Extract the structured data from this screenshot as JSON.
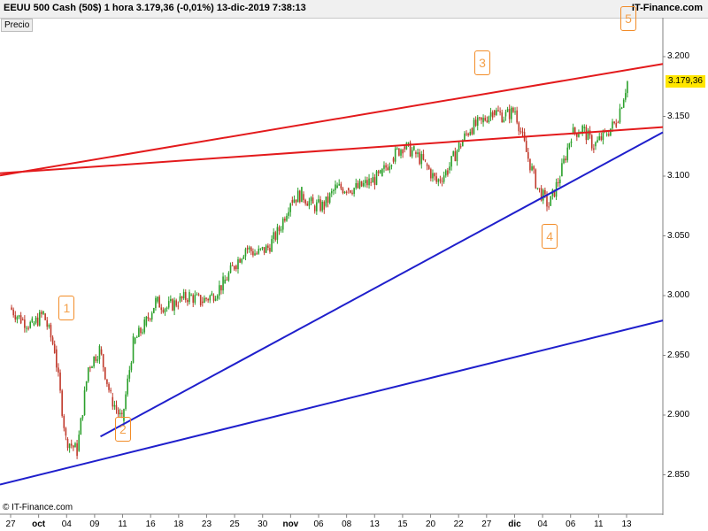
{
  "header": {
    "title": "EEUU 500 Cash (50$)    1 hora    3.179,36 (-0,01%)    13-dic-2019 7:38:13",
    "brand": "IT-Finance.com"
  },
  "precio_label": "Precio",
  "copyright": "© IT-Finance.com",
  "last_price_label": "3.179,36",
  "colors": {
    "background": "#ffffff",
    "candle_up": "#2ca02c",
    "candle_down": "#c0392b",
    "resistance_line": "#e31a1c",
    "support_line": "#1f1fcc",
    "wave_label": "#f28c28",
    "last_price_box": "#ffe600"
  },
  "chart_data": {
    "type": "line",
    "title": "EEUU 500 Cash (50$)",
    "interval": "1 hora",
    "ylabel": "Precio",
    "ylim": [
      2.83,
      3.24
    ],
    "yticks": [
      "3.200",
      "3.150",
      "3.100",
      "3.050",
      "3.000",
      "2.950",
      "2.900",
      "2.850"
    ],
    "ytick_values": [
      3.2,
      3.15,
      3.1,
      3.05,
      3.0,
      2.95,
      2.9,
      2.85
    ],
    "xticks": [
      "27",
      "oct",
      "04",
      "09",
      "11",
      "16",
      "18",
      "23",
      "25",
      "30",
      "nov",
      "06",
      "08",
      "13",
      "15",
      "20",
      "22",
      "27",
      "dic",
      "04",
      "06",
      "11",
      "13"
    ],
    "month_ticks": [
      "oct",
      "nov",
      "dic"
    ],
    "grid": false,
    "series": [
      {
        "name": "",
        "x": [
          "27-sep",
          "30-sep",
          "01-oct",
          "02-oct",
          "03-oct",
          "04-oct",
          "07-oct",
          "08-oct",
          "09-oct",
          "10-oct",
          "11-oct",
          "14-oct",
          "15-oct",
          "16-oct",
          "17-oct",
          "18-oct",
          "21-oct",
          "22-oct",
          "23-oct",
          "24-oct",
          "25-oct",
          "28-oct",
          "29-oct",
          "30-oct",
          "31-oct",
          "01-nov",
          "04-nov",
          "05-nov",
          "06-nov",
          "07-nov",
          "08-nov",
          "11-nov",
          "12-nov",
          "13-nov",
          "14-nov",
          "15-nov",
          "18-nov",
          "19-nov",
          "20-nov",
          "21-nov",
          "22-nov",
          "25-nov",
          "26-nov",
          "27-nov",
          "28-nov",
          "29-nov",
          "02-dic",
          "03-dic",
          "04-dic",
          "05-dic",
          "06-dic",
          "09-dic",
          "10-dic",
          "11-dic",
          "12-dic",
          "13-dic"
        ],
        "y": [
          2.99,
          2.98,
          2.975,
          2.985,
          2.955,
          2.88,
          2.87,
          2.94,
          2.955,
          2.915,
          2.895,
          2.96,
          2.975,
          2.995,
          2.99,
          2.995,
          3.0,
          2.995,
          3.0,
          3.01,
          3.025,
          3.04,
          3.035,
          3.04,
          3.055,
          3.08,
          3.085,
          3.075,
          3.075,
          3.09,
          3.09,
          3.09,
          3.095,
          3.1,
          3.115,
          3.125,
          3.12,
          3.11,
          3.095,
          3.105,
          3.125,
          3.14,
          3.145,
          3.155,
          3.15,
          3.155,
          3.12,
          3.09,
          3.075,
          3.1,
          3.135,
          3.14,
          3.125,
          3.135,
          3.145,
          3.179
        ]
      }
    ],
    "trendlines": [
      {
        "name": "",
        "color": "resistance_line",
        "from": {
          "x": "27-sep",
          "y": 3.102
        },
        "to": {
          "x": "13-dic",
          "y": 3.189
        }
      },
      {
        "name": "",
        "color": "resistance_line",
        "from": {
          "x": "27-sep",
          "y": 3.103
        },
        "to": {
          "x": "13-dic",
          "y": 3.139
        }
      },
      {
        "name": "",
        "color": "support_line",
        "from": {
          "x": "09-oct",
          "y": 2.882
        },
        "to": {
          "x": "13-dic",
          "y": 3.121
        }
      },
      {
        "name": "",
        "color": "support_line",
        "from": {
          "x": "27-sep",
          "y": 2.844
        },
        "to": {
          "x": "13-dic",
          "y": 2.972
        }
      }
    ],
    "annotations": [
      {
        "text": "1",
        "x": "04-oct",
        "y": 2.99
      },
      {
        "text": "2",
        "x": "11-oct",
        "y": 2.888
      },
      {
        "text": "3",
        "x": "26-nov",
        "y": 3.195
      },
      {
        "text": "4",
        "x": "04-dic",
        "y": 3.05
      },
      {
        "text": "5",
        "x": "13-dic",
        "y": 3.232
      }
    ],
    "last_value": 3.17936
  }
}
